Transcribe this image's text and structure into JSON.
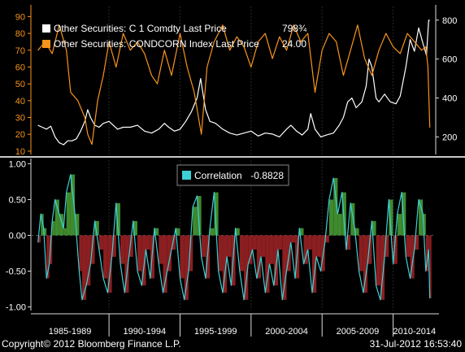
{
  "chart_data": [
    {
      "type": "line",
      "panel": "top",
      "legend": [
        {
          "label": "Other Securities: C 1 Comdty Last Price",
          "value": "798¾",
          "color": "#ffffff"
        },
        {
          "label": "Other Securities: CONDCORN Index Last Price",
          "value": "24.00",
          "color": "#f7941d"
        }
      ],
      "left_axis": {
        "ticks": [
          10,
          20,
          30,
          40,
          50,
          60,
          70,
          80,
          90
        ],
        "color": "#f7941d",
        "ylim": [
          8,
          96
        ]
      },
      "right_axis": {
        "ticks": [
          200,
          400,
          600,
          800
        ],
        "color": "#ffffff",
        "ylim": [
          110,
          870
        ]
      },
      "series": [
        {
          "name": "C 1 Comdty Last Price",
          "axis": "right",
          "color": "#ffffff",
          "x": [
            1985.0,
            1985.3,
            1985.6,
            1985.9,
            1986.2,
            1986.5,
            1986.8,
            1987.1,
            1987.4,
            1987.7,
            1988.0,
            1988.3,
            1988.5,
            1988.7,
            1989.0,
            1989.3,
            1989.6,
            1990.0,
            1990.3,
            1990.6,
            1991.0,
            1991.5,
            1992.0,
            1992.5,
            1993.0,
            1993.5,
            1993.9,
            1994.2,
            1994.6,
            1995.0,
            1995.4,
            1995.8,
            1996.2,
            1996.45,
            1996.6,
            1996.8,
            1997.1,
            1997.5,
            1998.0,
            1998.5,
            1999.0,
            1999.5,
            2000.0,
            2000.5,
            2001.0,
            2001.5,
            2002.0,
            2002.5,
            2002.8,
            2003.2,
            2003.6,
            2004.0,
            2004.2,
            2004.5,
            2004.9,
            2005.3,
            2005.8,
            2006.2,
            2006.5,
            2006.8,
            2007.1,
            2007.4,
            2007.8,
            2008.1,
            2008.3,
            2008.5,
            2008.8,
            2009.0,
            2009.4,
            2009.8,
            2010.2,
            2010.5,
            2010.9,
            2011.2,
            2011.5,
            2011.8,
            2012.1,
            2012.35,
            2012.5,
            2012.58
          ],
          "values": [
            260,
            250,
            240,
            255,
            200,
            170,
            160,
            180,
            180,
            190,
            230,
            280,
            340,
            300,
            260,
            250,
            270,
            280,
            260,
            240,
            250,
            250,
            260,
            230,
            220,
            240,
            270,
            250,
            230,
            240,
            280,
            330,
            400,
            500,
            430,
            340,
            280,
            270,
            240,
            220,
            210,
            220,
            230,
            205,
            220,
            215,
            200,
            240,
            260,
            230,
            210,
            240,
            320,
            240,
            200,
            210,
            220,
            260,
            300,
            380,
            400,
            350,
            380,
            460,
            600,
            560,
            400,
            380,
            420,
            380,
            370,
            410,
            560,
            700,
            640,
            760,
            680,
            620,
            800,
            798.75
          ]
        },
        {
          "name": "CONDCORN Index Last Price",
          "axis": "left",
          "color": "#f7941d",
          "x": [
            1985.0,
            1985.5,
            1986.0,
            1986.5,
            1987.0,
            1987.3,
            1987.8,
            1988.3,
            1988.5,
            1988.8,
            1989.2,
            1989.6,
            1990.0,
            1990.5,
            1991.0,
            1991.5,
            1992.0,
            1992.5,
            1993.0,
            1993.4,
            1993.9,
            1994.4,
            1995.0,
            1995.5,
            1996.0,
            1996.5,
            1996.9,
            1997.4,
            1998.0,
            1998.5,
            1999.0,
            1999.5,
            2000.0,
            2000.5,
            2001.0,
            2001.5,
            2002.0,
            2002.5,
            2003.0,
            2003.5,
            2004.0,
            2004.5,
            2005.0,
            2005.5,
            2006.0,
            2006.5,
            2007.0,
            2007.5,
            2008.0,
            2008.5,
            2009.0,
            2009.5,
            2010.0,
            2010.5,
            2011.0,
            2011.5,
            2012.0,
            2012.3,
            2012.45,
            2012.58
          ],
          "values": [
            70,
            75,
            68,
            85,
            70,
            45,
            40,
            30,
            20,
            14,
            40,
            55,
            75,
            60,
            80,
            70,
            75,
            68,
            55,
            50,
            70,
            55,
            80,
            60,
            45,
            20,
            60,
            75,
            85,
            70,
            78,
            72,
            60,
            75,
            80,
            65,
            78,
            70,
            85,
            75,
            80,
            45,
            70,
            80,
            75,
            55,
            70,
            85,
            65,
            55,
            70,
            80,
            72,
            68,
            80,
            75,
            70,
            72,
            60,
            24
          ]
        }
      ]
    },
    {
      "type": "area",
      "panel": "bottom",
      "legend": [
        {
          "label": "Correlation",
          "value": "-0.8828",
          "color": "#3dd1d6"
        }
      ],
      "y_axis": {
        "ticks": [
          1.0,
          0.5,
          0.0,
          -0.5,
          -1.0
        ],
        "tick_labels": [
          "1.00",
          "0.50",
          "0.00",
          "-0.50",
          "-1.00"
        ],
        "ylim": [
          -1.05,
          1.05
        ]
      },
      "series": [
        {
          "name": "Correlation",
          "color": "#3dd1d6",
          "pos_fill": "#3f8a2e",
          "neg_fill": "#8b1e20",
          "x": [
            1985.0,
            1985.2,
            1985.4,
            1985.6,
            1985.8,
            1986.0,
            1986.2,
            1986.5,
            1986.8,
            1987.0,
            1987.3,
            1987.6,
            1987.9,
            1988.1,
            1988.4,
            1988.7,
            1989.0,
            1989.3,
            1989.6,
            1989.9,
            1990.2,
            1990.5,
            1990.8,
            1991.1,
            1991.4,
            1991.7,
            1992.0,
            1992.3,
            1992.6,
            1992.9,
            1993.2,
            1993.5,
            1993.8,
            1994.1,
            1994.4,
            1994.7,
            1995.0,
            1995.3,
            1995.6,
            1995.9,
            1996.2,
            1996.5,
            1996.8,
            1997.1,
            1997.4,
            1997.7,
            1998.0,
            1998.3,
            1998.6,
            1998.9,
            1999.2,
            1999.5,
            1999.8,
            2000.1,
            2000.4,
            2000.7,
            2001.0,
            2001.3,
            2001.6,
            2001.9,
            2002.2,
            2002.5,
            2002.8,
            2003.1,
            2003.4,
            2003.7,
            2004.0,
            2004.3,
            2004.6,
            2004.9,
            2005.2,
            2005.5,
            2005.8,
            2006.1,
            2006.4,
            2006.7,
            2007.0,
            2007.3,
            2007.6,
            2007.9,
            2008.2,
            2008.5,
            2008.8,
            2009.1,
            2009.4,
            2009.7,
            2010.0,
            2010.3,
            2010.6,
            2010.9,
            2011.2,
            2011.5,
            2011.8,
            2012.1,
            2012.3,
            2012.5,
            2012.58
          ],
          "values": [
            -0.1,
            0.3,
            0.1,
            -0.6,
            -0.4,
            0.2,
            0.5,
            0.3,
            0.1,
            0.6,
            0.85,
            0.3,
            -0.5,
            -0.9,
            -0.7,
            -0.4,
            0.2,
            -0.2,
            -0.6,
            -0.8,
            -0.3,
            0.45,
            -0.4,
            -0.8,
            -0.3,
            0.2,
            -0.5,
            -0.7,
            -0.2,
            -0.6,
            0.1,
            -0.4,
            -0.8,
            -0.5,
            -0.2,
            0.1,
            -0.6,
            -0.9,
            -0.5,
            0.4,
            0.55,
            -0.3,
            -0.6,
            0.1,
            0.6,
            -0.5,
            -0.8,
            -0.3,
            -0.7,
            0.1,
            -0.5,
            -0.9,
            -0.4,
            -0.2,
            -0.6,
            -0.3,
            -0.8,
            -0.4,
            -0.7,
            -0.2,
            -0.9,
            -0.5,
            -0.1,
            -0.6,
            0.1,
            -0.4,
            -0.2,
            -0.8,
            -0.3,
            -0.5,
            -0.1,
            0.5,
            0.8,
            0.3,
            0.6,
            -0.2,
            0.45,
            0.1,
            -0.5,
            -0.8,
            -0.4,
            0.2,
            -0.7,
            -0.9,
            -0.3,
            0.5,
            -0.4,
            0.3,
            0.6,
            -0.3,
            -0.6,
            -0.2,
            0.5,
            0.3,
            -0.5,
            -0.2,
            -0.88
          ]
        }
      ]
    }
  ],
  "x_axis": {
    "labels": [
      "1985-1989",
      "1990-1994",
      "1995-1999",
      "2000-2004",
      "2005-2009",
      "2010-2014"
    ],
    "xlim": [
      1984.5,
      2013.0
    ],
    "period_bounds": [
      1990,
      1995,
      2000,
      2005,
      2010
    ]
  },
  "footer": {
    "copyright": "Copyright© 2012 Bloomberg Finance L.P.",
    "timestamp": "31-Jul-2012 16:53:40"
  }
}
